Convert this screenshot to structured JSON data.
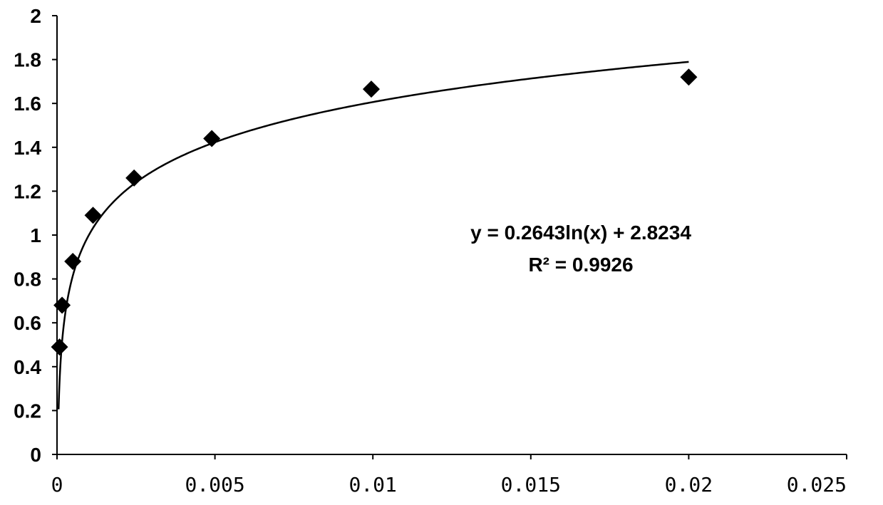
{
  "chart_data": {
    "type": "scatter",
    "title": "",
    "xlabel": "",
    "ylabel": "",
    "xlim": [
      0,
      0.025
    ],
    "ylim": [
      0,
      2
    ],
    "x_ticks": [
      {
        "value": 0,
        "label": "0"
      },
      {
        "value": 0.005,
        "label": "0.005"
      },
      {
        "value": 0.01,
        "label": "0.01"
      },
      {
        "value": 0.015,
        "label": "0.015"
      },
      {
        "value": 0.02,
        "label": "0.02"
      },
      {
        "value": 0.025,
        "label": "0.025"
      }
    ],
    "y_ticks": [
      {
        "value": 0,
        "label": "0"
      },
      {
        "value": 0.2,
        "label": "0.2"
      },
      {
        "value": 0.4,
        "label": "0.4"
      },
      {
        "value": 0.6,
        "label": "0.6"
      },
      {
        "value": 0.8,
        "label": "0.8"
      },
      {
        "value": 1,
        "label": "1"
      },
      {
        "value": 1.2,
        "label": "1.2"
      },
      {
        "value": 1.4,
        "label": "1.4"
      },
      {
        "value": 1.6,
        "label": "1.6"
      },
      {
        "value": 1.8,
        "label": "1.8"
      },
      {
        "value": 2,
        "label": "2"
      }
    ],
    "grid": false,
    "legend": "none",
    "series": [
      {
        "marker": "diamond",
        "color": "#000000",
        "points": [
          {
            "x": 8e-05,
            "y": 0.49
          },
          {
            "x": 0.00016,
            "y": 0.68
          },
          {
            "x": 0.0005,
            "y": 0.88
          },
          {
            "x": 0.00114,
            "y": 1.09
          },
          {
            "x": 0.00244,
            "y": 1.26
          },
          {
            "x": 0.0049,
            "y": 1.44
          },
          {
            "x": 0.00995,
            "y": 1.665
          },
          {
            "x": 0.02,
            "y": 1.72
          }
        ]
      }
    ],
    "trendline": {
      "type": "logarithmic",
      "a": 0.2643,
      "b": 2.8234,
      "x_range": [
        5e-05,
        0.02
      ],
      "color": "#000000"
    },
    "annotation": {
      "lines": [
        "y = 0.2643ln(x) + 2.8234",
        "R² = 0.9926"
      ]
    }
  }
}
